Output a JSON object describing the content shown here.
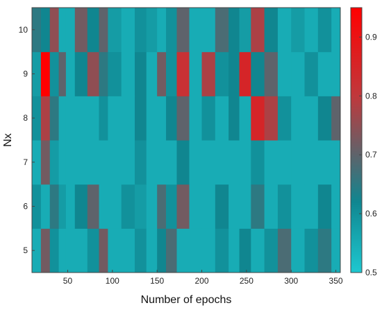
{
  "chart_data": {
    "type": "heatmap",
    "xlabel": "Number of epochs",
    "ylabel": "Nx",
    "x_ticks": [
      50,
      100,
      150,
      200,
      250,
      300,
      350
    ],
    "y_ticks": [
      5,
      6,
      7,
      8,
      9,
      10
    ],
    "xlim": [
      10,
      355
    ],
    "ylim": [
      4.5,
      10.5
    ],
    "colorbar": {
      "min": 0.5,
      "max": 0.95,
      "ticks": [
        0.5,
        0.6,
        0.7,
        0.8,
        0.9
      ],
      "colors": [
        "#1ec8d0",
        "#108690",
        "#c0383c",
        "#ff0000"
      ],
      "stops": [
        0.5,
        0.62,
        0.8,
        0.95
      ]
    },
    "row_centers": [
      5,
      6,
      7,
      8,
      9,
      10
    ],
    "column_edges": [
      10,
      20,
      30,
      40,
      48,
      58,
      72,
      85,
      95,
      110,
      125,
      138,
      150,
      160,
      172,
      186,
      200,
      215,
      230,
      242,
      255,
      270,
      285,
      300,
      315,
      330,
      345,
      355
    ],
    "values": [
      [
        0.55,
        0.72,
        0.6,
        0.55,
        0.55,
        0.55,
        0.6,
        0.72,
        0.55,
        0.55,
        0.6,
        0.55,
        0.62,
        0.68,
        0.55,
        0.55,
        0.55,
        0.6,
        0.55,
        0.62,
        0.55,
        0.6,
        0.68,
        0.55,
        0.6,
        0.65,
        0.55
      ],
      [
        0.6,
        0.55,
        0.65,
        0.58,
        0.55,
        0.62,
        0.7,
        0.55,
        0.55,
        0.6,
        0.58,
        0.55,
        0.68,
        0.6,
        0.72,
        0.55,
        0.55,
        0.62,
        0.55,
        0.55,
        0.65,
        0.55,
        0.6,
        0.55,
        0.55,
        0.62,
        0.55
      ],
      [
        0.55,
        0.72,
        0.58,
        0.55,
        0.55,
        0.55,
        0.55,
        0.55,
        0.55,
        0.55,
        0.6,
        0.55,
        0.55,
        0.55,
        0.62,
        0.55,
        0.55,
        0.55,
        0.55,
        0.55,
        0.6,
        0.55,
        0.55,
        0.55,
        0.55,
        0.55,
        0.55
      ],
      [
        0.6,
        0.78,
        0.65,
        0.55,
        0.55,
        0.55,
        0.55,
        0.6,
        0.55,
        0.55,
        0.62,
        0.55,
        0.55,
        0.62,
        0.7,
        0.55,
        0.6,
        0.55,
        0.62,
        0.55,
        0.85,
        0.78,
        0.6,
        0.55,
        0.55,
        0.62,
        0.7
      ],
      [
        0.58,
        0.95,
        0.6,
        0.7,
        0.55,
        0.62,
        0.75,
        0.65,
        0.6,
        0.55,
        0.62,
        0.55,
        0.72,
        0.6,
        0.82,
        0.55,
        0.78,
        0.6,
        0.62,
        0.85,
        0.62,
        0.7,
        0.55,
        0.55,
        0.6,
        0.55,
        0.55
      ],
      [
        0.65,
        0.62,
        0.75,
        0.55,
        0.55,
        0.72,
        0.62,
        0.7,
        0.58,
        0.55,
        0.6,
        0.58,
        0.55,
        0.6,
        0.7,
        0.55,
        0.55,
        0.68,
        0.62,
        0.58,
        0.78,
        0.62,
        0.55,
        0.58,
        0.55,
        0.6,
        0.55
      ]
    ]
  }
}
